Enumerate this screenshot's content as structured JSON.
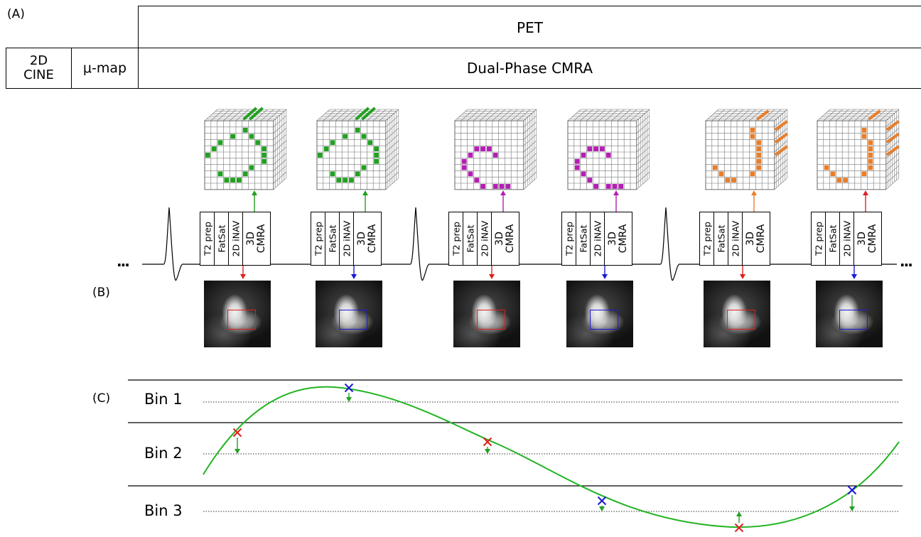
{
  "panel_labels": {
    "a": "(A)",
    "b": "(B)",
    "c": "(C)"
  },
  "timeline_top": {
    "pet": "PET",
    "cine": "2D\nCINE",
    "mumap": "μ-map",
    "cmra": "Dual-Phase CMRA"
  },
  "ellipsis": "...",
  "sequence_block": {
    "t2prep": "T2 prep",
    "fatsat": "FatSat",
    "inav": "2D iNAV",
    "cmra": "3D\nCMRA"
  },
  "bins": [
    "Bin 1",
    "Bin 2",
    "Bin 3"
  ],
  "colors": {
    "green": "#22a022",
    "magenta": "#b41eb4",
    "orange": "#e87e2a",
    "red": "#e02020",
    "blue": "#1a1ad8",
    "curve": "#22b422"
  },
  "acquisitions": [
    {
      "bin": 2,
      "roi_color": "red",
      "cube_color": "green",
      "arrow_color": "green"
    },
    {
      "bin": 1,
      "roi_color": "blue",
      "cube_color": "green",
      "arrow_color": "green"
    },
    {
      "bin": 2,
      "roi_color": "red",
      "cube_color": "magenta",
      "arrow_color": "magenta"
    },
    {
      "bin": 3,
      "roi_color": "blue",
      "cube_color": "magenta",
      "arrow_color": "magenta"
    },
    {
      "bin": 3,
      "roi_color": "red",
      "cube_color": "orange",
      "arrow_color": "orange"
    },
    {
      "bin": 3,
      "roi_color": "blue",
      "cube_color": "orange",
      "arrow_color": "red"
    }
  ]
}
